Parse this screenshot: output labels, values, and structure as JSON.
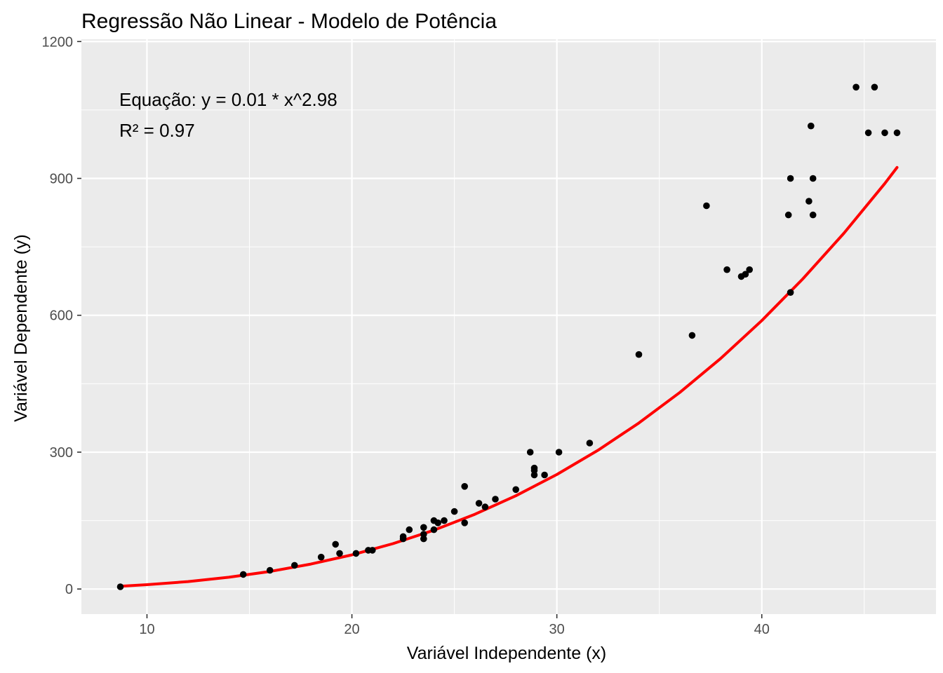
{
  "chart_data": {
    "type": "scatter",
    "title": "Regressão Não Linear - Modelo de Potência",
    "xlabel": "Variável Independente (x)",
    "ylabel": "Variável Dependente (y)",
    "xlim": [
      6.8,
      48.5
    ],
    "ylim": [
      -55,
      1205
    ],
    "x_ticks": [
      10,
      20,
      30,
      40
    ],
    "y_ticks": [
      0,
      300,
      600,
      900,
      1200
    ],
    "x_tick_labels": [
      "10",
      "20",
      "30",
      "40"
    ],
    "y_tick_labels": [
      "0",
      "300",
      "600",
      "900",
      "1200"
    ],
    "grid": true,
    "legend": "none",
    "colors": {
      "panel_background": "#ebebeb",
      "grid_line": "#ffffff",
      "points": "#000000",
      "fit_line": "#ff0000"
    },
    "annotations": [
      "Equação: y = 0.01 * x^2.98",
      "R² = 0.97"
    ],
    "series": [
      {
        "type": "scatter",
        "points": [
          [
            8.7,
            5
          ],
          [
            14.7,
            32
          ],
          [
            16.0,
            41
          ],
          [
            17.2,
            52
          ],
          [
            18.5,
            70
          ],
          [
            19.2,
            98
          ],
          [
            19.4,
            78
          ],
          [
            20.2,
            78
          ],
          [
            20.8,
            85
          ],
          [
            21.0,
            85
          ],
          [
            22.5,
            110
          ],
          [
            22.5,
            115
          ],
          [
            22.8,
            130
          ],
          [
            23.5,
            110
          ],
          [
            23.5,
            120
          ],
          [
            23.5,
            135
          ],
          [
            24.0,
            130
          ],
          [
            24.0,
            150
          ],
          [
            24.2,
            145
          ],
          [
            24.5,
            150
          ],
          [
            25.0,
            170
          ],
          [
            25.5,
            145
          ],
          [
            25.5,
            225
          ],
          [
            26.2,
            188
          ],
          [
            26.5,
            180
          ],
          [
            27.0,
            197
          ],
          [
            28.0,
            218
          ],
          [
            28.7,
            300
          ],
          [
            28.9,
            250
          ],
          [
            28.9,
            260
          ],
          [
            28.9,
            265
          ],
          [
            29.4,
            250
          ],
          [
            30.1,
            300
          ],
          [
            31.6,
            320
          ],
          [
            34.0,
            514
          ],
          [
            36.6,
            556
          ],
          [
            37.3,
            840
          ],
          [
            38.3,
            700
          ],
          [
            39.0,
            685
          ],
          [
            39.2,
            690
          ],
          [
            39.4,
            700
          ],
          [
            41.3,
            820
          ],
          [
            41.4,
            650
          ],
          [
            41.4,
            900
          ],
          [
            42.3,
            850
          ],
          [
            42.4,
            1015
          ],
          [
            42.5,
            820
          ],
          [
            42.5,
            900
          ],
          [
            44.6,
            1100
          ],
          [
            45.2,
            1000
          ],
          [
            45.5,
            1100
          ],
          [
            46.0,
            1000
          ],
          [
            46.6,
            1000
          ]
        ]
      },
      {
        "type": "line",
        "points": [
          [
            8.7,
            6.2
          ],
          [
            10,
            9.5
          ],
          [
            12,
            16.3
          ],
          [
            14,
            25.9
          ],
          [
            16,
            38.5
          ],
          [
            18,
            54.7
          ],
          [
            20,
            74.9
          ],
          [
            22,
            99.5
          ],
          [
            24,
            129
          ],
          [
            26,
            163.8
          ],
          [
            28,
            204.3
          ],
          [
            30,
            250.9
          ],
          [
            32,
            303.9
          ],
          [
            34,
            363.8
          ],
          [
            36,
            430.9
          ],
          [
            38,
            505.6
          ],
          [
            40,
            588.4
          ],
          [
            42,
            679.6
          ],
          [
            44,
            779.5
          ],
          [
            46,
            888.7
          ],
          [
            46.6,
            924
          ]
        ]
      }
    ]
  }
}
